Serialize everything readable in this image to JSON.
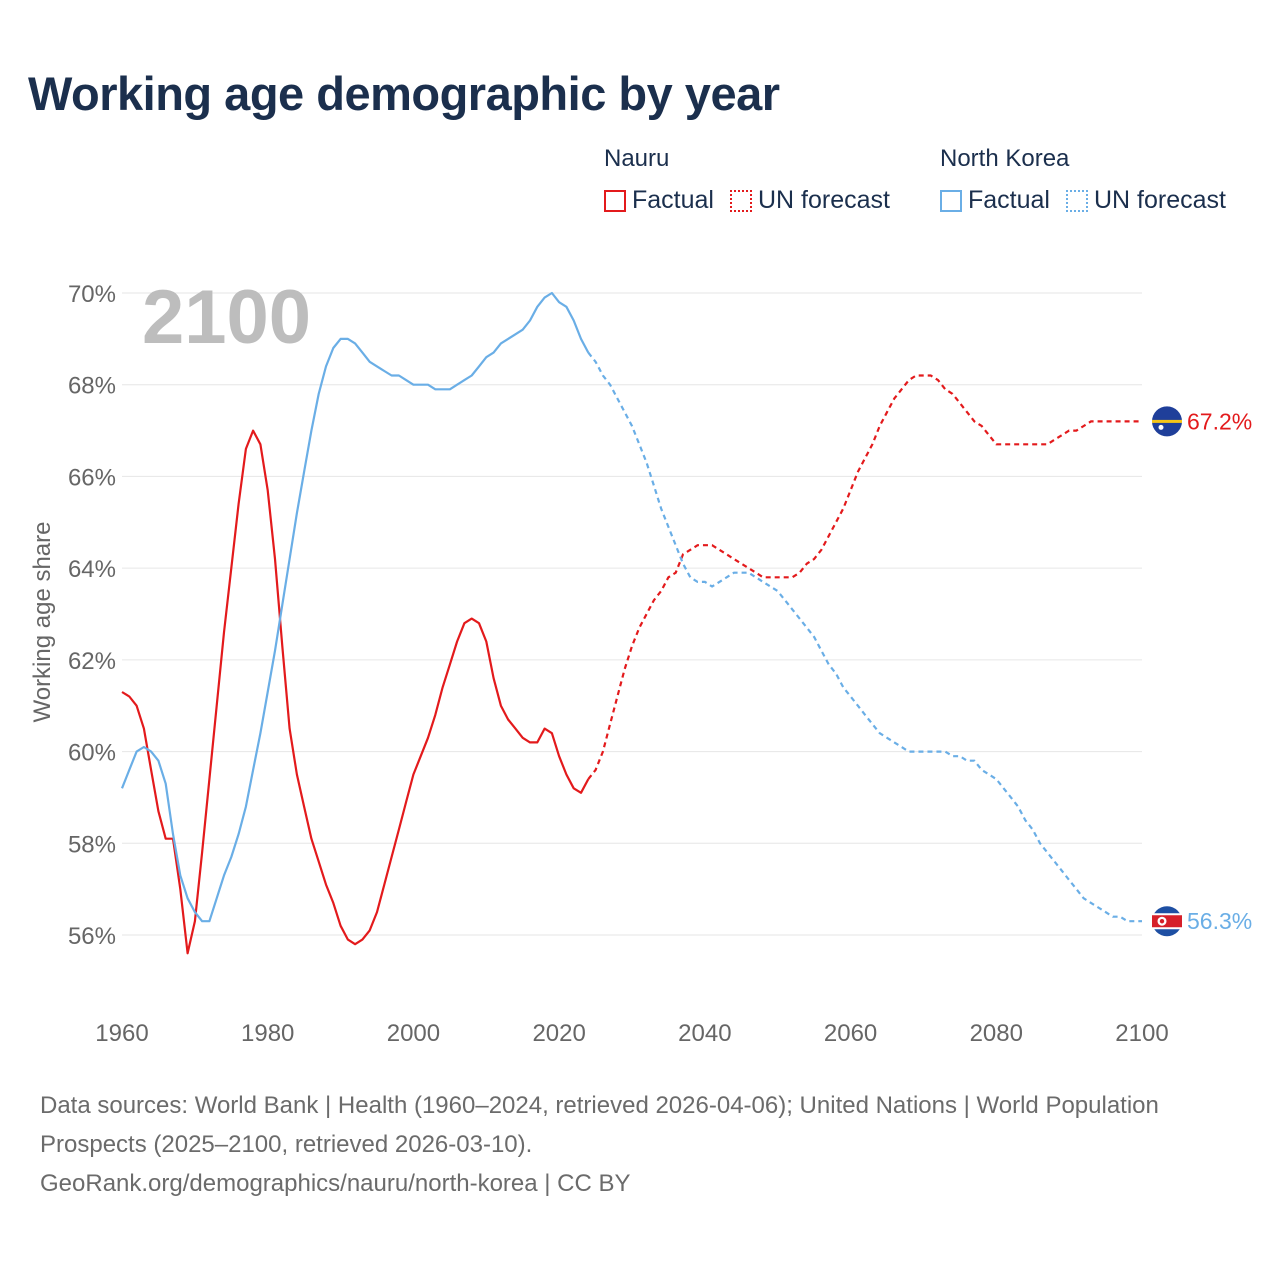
{
  "title": "Working age demographic by year",
  "legend": {
    "groups": [
      {
        "name": "Nauru",
        "color": "#e31a1c",
        "factual_label": "Factual",
        "forecast_label": "UN forecast"
      },
      {
        "name": "North Korea",
        "color": "#6aaee6",
        "factual_label": "Factual",
        "forecast_label": "UN forecast"
      }
    ]
  },
  "chart_data": {
    "type": "line",
    "title": "Working age demographic by year",
    "year_watermark": "2100",
    "ylabel": "Working age share",
    "xlabel": "",
    "xlim": [
      1960,
      2100
    ],
    "ylim": [
      56,
      70
    ],
    "x_ticks": [
      1960,
      1980,
      2000,
      2020,
      2040,
      2060,
      2080,
      2100
    ],
    "y_ticks": [
      56,
      58,
      60,
      62,
      64,
      66,
      68,
      70
    ],
    "y_tick_labels": [
      "56%",
      "58%",
      "60%",
      "62%",
      "64%",
      "66%",
      "68%",
      "70%"
    ],
    "grid": true,
    "series": [
      {
        "name": "Nauru",
        "color": "#e31a1c",
        "end_label": "67.2%",
        "factual": [
          [
            1960,
            61.3
          ],
          [
            1961,
            61.2
          ],
          [
            1962,
            61.0
          ],
          [
            1963,
            60.5
          ],
          [
            1964,
            59.6
          ],
          [
            1965,
            58.7
          ],
          [
            1966,
            58.1
          ],
          [
            1967,
            58.1
          ],
          [
            1968,
            57.0
          ],
          [
            1969,
            55.6
          ],
          [
            1970,
            56.3
          ],
          [
            1971,
            57.8
          ],
          [
            1972,
            59.4
          ],
          [
            1973,
            61.0
          ],
          [
            1974,
            62.6
          ],
          [
            1975,
            64.0
          ],
          [
            1976,
            65.4
          ],
          [
            1977,
            66.6
          ],
          [
            1978,
            67.0
          ],
          [
            1979,
            66.7
          ],
          [
            1980,
            65.7
          ],
          [
            1981,
            64.2
          ],
          [
            1982,
            62.3
          ],
          [
            1983,
            60.5
          ],
          [
            1984,
            59.5
          ],
          [
            1985,
            58.8
          ],
          [
            1986,
            58.1
          ],
          [
            1987,
            57.6
          ],
          [
            1988,
            57.1
          ],
          [
            1989,
            56.7
          ],
          [
            1990,
            56.2
          ],
          [
            1991,
            55.9
          ],
          [
            1992,
            55.8
          ],
          [
            1993,
            55.9
          ],
          [
            1994,
            56.1
          ],
          [
            1995,
            56.5
          ],
          [
            1996,
            57.1
          ],
          [
            1997,
            57.7
          ],
          [
            1998,
            58.3
          ],
          [
            1999,
            58.9
          ],
          [
            2000,
            59.5
          ],
          [
            2001,
            59.9
          ],
          [
            2002,
            60.3
          ],
          [
            2003,
            60.8
          ],
          [
            2004,
            61.4
          ],
          [
            2005,
            61.9
          ],
          [
            2006,
            62.4
          ],
          [
            2007,
            62.8
          ],
          [
            2008,
            62.9
          ],
          [
            2009,
            62.8
          ],
          [
            2010,
            62.4
          ],
          [
            2011,
            61.6
          ],
          [
            2012,
            61.0
          ],
          [
            2013,
            60.7
          ],
          [
            2014,
            60.5
          ],
          [
            2015,
            60.3
          ],
          [
            2016,
            60.2
          ],
          [
            2017,
            60.2
          ],
          [
            2018,
            60.5
          ],
          [
            2019,
            60.4
          ],
          [
            2020,
            59.9
          ],
          [
            2021,
            59.5
          ],
          [
            2022,
            59.2
          ],
          [
            2023,
            59.1
          ],
          [
            2024,
            59.4
          ]
        ],
        "forecast": [
          [
            2024,
            59.4
          ],
          [
            2025,
            59.6
          ],
          [
            2026,
            60.0
          ],
          [
            2027,
            60.6
          ],
          [
            2028,
            61.2
          ],
          [
            2029,
            61.8
          ],
          [
            2030,
            62.3
          ],
          [
            2031,
            62.7
          ],
          [
            2032,
            63.0
          ],
          [
            2033,
            63.3
          ],
          [
            2034,
            63.5
          ],
          [
            2035,
            63.8
          ],
          [
            2036,
            63.9
          ],
          [
            2037,
            64.3
          ],
          [
            2038,
            64.4
          ],
          [
            2039,
            64.5
          ],
          [
            2040,
            64.5
          ],
          [
            2041,
            64.5
          ],
          [
            2042,
            64.4
          ],
          [
            2043,
            64.3
          ],
          [
            2044,
            64.2
          ],
          [
            2045,
            64.1
          ],
          [
            2046,
            64.0
          ],
          [
            2047,
            63.9
          ],
          [
            2048,
            63.8
          ],
          [
            2049,
            63.8
          ],
          [
            2050,
            63.8
          ],
          [
            2051,
            63.8
          ],
          [
            2052,
            63.8
          ],
          [
            2053,
            63.9
          ],
          [
            2054,
            64.1
          ],
          [
            2055,
            64.2
          ],
          [
            2056,
            64.4
          ],
          [
            2057,
            64.7
          ],
          [
            2058,
            65.0
          ],
          [
            2059,
            65.3
          ],
          [
            2060,
            65.7
          ],
          [
            2061,
            66.1
          ],
          [
            2062,
            66.4
          ],
          [
            2063,
            66.7
          ],
          [
            2064,
            67.1
          ],
          [
            2065,
            67.4
          ],
          [
            2066,
            67.7
          ],
          [
            2067,
            67.9
          ],
          [
            2068,
            68.1
          ],
          [
            2069,
            68.2
          ],
          [
            2070,
            68.2
          ],
          [
            2071,
            68.2
          ],
          [
            2072,
            68.1
          ],
          [
            2073,
            67.9
          ],
          [
            2074,
            67.8
          ],
          [
            2075,
            67.6
          ],
          [
            2076,
            67.4
          ],
          [
            2077,
            67.2
          ],
          [
            2078,
            67.1
          ],
          [
            2079,
            66.9
          ],
          [
            2080,
            66.7
          ],
          [
            2081,
            66.7
          ],
          [
            2082,
            66.7
          ],
          [
            2083,
            66.7
          ],
          [
            2084,
            66.7
          ],
          [
            2085,
            66.7
          ],
          [
            2086,
            66.7
          ],
          [
            2087,
            66.7
          ],
          [
            2088,
            66.8
          ],
          [
            2089,
            66.9
          ],
          [
            2090,
            67.0
          ],
          [
            2091,
            67.0
          ],
          [
            2092,
            67.1
          ],
          [
            2093,
            67.2
          ],
          [
            2094,
            67.2
          ],
          [
            2095,
            67.2
          ],
          [
            2096,
            67.2
          ],
          [
            2097,
            67.2
          ],
          [
            2098,
            67.2
          ],
          [
            2099,
            67.2
          ],
          [
            2100,
            67.2
          ]
        ]
      },
      {
        "name": "North Korea",
        "color": "#6aaee6",
        "end_label": "56.3%",
        "factual": [
          [
            1960,
            59.2
          ],
          [
            1961,
            59.6
          ],
          [
            1962,
            60.0
          ],
          [
            1963,
            60.1
          ],
          [
            1964,
            60.0
          ],
          [
            1965,
            59.8
          ],
          [
            1966,
            59.3
          ],
          [
            1967,
            58.2
          ],
          [
            1968,
            57.3
          ],
          [
            1969,
            56.8
          ],
          [
            1970,
            56.5
          ],
          [
            1971,
            56.3
          ],
          [
            1972,
            56.3
          ],
          [
            1973,
            56.8
          ],
          [
            1974,
            57.3
          ],
          [
            1975,
            57.7
          ],
          [
            1976,
            58.2
          ],
          [
            1977,
            58.8
          ],
          [
            1978,
            59.6
          ],
          [
            1979,
            60.4
          ],
          [
            1980,
            61.3
          ],
          [
            1981,
            62.2
          ],
          [
            1982,
            63.2
          ],
          [
            1983,
            64.2
          ],
          [
            1984,
            65.2
          ],
          [
            1985,
            66.1
          ],
          [
            1986,
            67.0
          ],
          [
            1987,
            67.8
          ],
          [
            1988,
            68.4
          ],
          [
            1989,
            68.8
          ],
          [
            1990,
            69.0
          ],
          [
            1991,
            69.0
          ],
          [
            1992,
            68.9
          ],
          [
            1993,
            68.7
          ],
          [
            1994,
            68.5
          ],
          [
            1995,
            68.4
          ],
          [
            1996,
            68.3
          ],
          [
            1997,
            68.2
          ],
          [
            1998,
            68.2
          ],
          [
            1999,
            68.1
          ],
          [
            2000,
            68.0
          ],
          [
            2001,
            68.0
          ],
          [
            2002,
            68.0
          ],
          [
            2003,
            67.9
          ],
          [
            2004,
            67.9
          ],
          [
            2005,
            67.9
          ],
          [
            2006,
            68.0
          ],
          [
            2007,
            68.1
          ],
          [
            2008,
            68.2
          ],
          [
            2009,
            68.4
          ],
          [
            2010,
            68.6
          ],
          [
            2011,
            68.7
          ],
          [
            2012,
            68.9
          ],
          [
            2013,
            69.0
          ],
          [
            2014,
            69.1
          ],
          [
            2015,
            69.2
          ],
          [
            2016,
            69.4
          ],
          [
            2017,
            69.7
          ],
          [
            2018,
            69.9
          ],
          [
            2019,
            70.0
          ],
          [
            2020,
            69.8
          ],
          [
            2021,
            69.7
          ],
          [
            2022,
            69.4
          ],
          [
            2023,
            69.0
          ],
          [
            2024,
            68.7
          ]
        ],
        "forecast": [
          [
            2024,
            68.7
          ],
          [
            2025,
            68.5
          ],
          [
            2026,
            68.2
          ],
          [
            2027,
            68.0
          ],
          [
            2028,
            67.7
          ],
          [
            2029,
            67.4
          ],
          [
            2030,
            67.1
          ],
          [
            2031,
            66.7
          ],
          [
            2032,
            66.3
          ],
          [
            2033,
            65.8
          ],
          [
            2034,
            65.3
          ],
          [
            2035,
            64.9
          ],
          [
            2036,
            64.5
          ],
          [
            2037,
            64.1
          ],
          [
            2038,
            63.8
          ],
          [
            2039,
            63.7
          ],
          [
            2040,
            63.7
          ],
          [
            2041,
            63.6
          ],
          [
            2042,
            63.7
          ],
          [
            2043,
            63.8
          ],
          [
            2044,
            63.9
          ],
          [
            2045,
            63.9
          ],
          [
            2046,
            63.9
          ],
          [
            2047,
            63.8
          ],
          [
            2048,
            63.7
          ],
          [
            2049,
            63.6
          ],
          [
            2050,
            63.5
          ],
          [
            2051,
            63.3
          ],
          [
            2052,
            63.1
          ],
          [
            2053,
            62.9
          ],
          [
            2054,
            62.7
          ],
          [
            2055,
            62.5
          ],
          [
            2056,
            62.2
          ],
          [
            2057,
            61.9
          ],
          [
            2058,
            61.7
          ],
          [
            2059,
            61.4
          ],
          [
            2060,
            61.2
          ],
          [
            2061,
            61.0
          ],
          [
            2062,
            60.8
          ],
          [
            2063,
            60.6
          ],
          [
            2064,
            60.4
          ],
          [
            2065,
            60.3
          ],
          [
            2066,
            60.2
          ],
          [
            2067,
            60.1
          ],
          [
            2068,
            60.0
          ],
          [
            2069,
            60.0
          ],
          [
            2070,
            60.0
          ],
          [
            2071,
            60.0
          ],
          [
            2072,
            60.0
          ],
          [
            2073,
            60.0
          ],
          [
            2074,
            59.9
          ],
          [
            2075,
            59.9
          ],
          [
            2076,
            59.8
          ],
          [
            2077,
            59.8
          ],
          [
            2078,
            59.6
          ],
          [
            2079,
            59.5
          ],
          [
            2080,
            59.4
          ],
          [
            2081,
            59.2
          ],
          [
            2082,
            59.0
          ],
          [
            2083,
            58.8
          ],
          [
            2084,
            58.5
          ],
          [
            2085,
            58.3
          ],
          [
            2086,
            58.0
          ],
          [
            2087,
            57.8
          ],
          [
            2088,
            57.6
          ],
          [
            2089,
            57.4
          ],
          [
            2090,
            57.2
          ],
          [
            2091,
            57.0
          ],
          [
            2092,
            56.8
          ],
          [
            2093,
            56.7
          ],
          [
            2094,
            56.6
          ],
          [
            2095,
            56.5
          ],
          [
            2096,
            56.4
          ],
          [
            2097,
            56.4
          ],
          [
            2098,
            56.3
          ],
          [
            2099,
            56.3
          ],
          [
            2100,
            56.3
          ]
        ]
      }
    ]
  },
  "source": {
    "line1": "Data sources: World Bank | Health (1960–2024, retrieved 2026-04-06); United Nations | World Population Prospects (2025–2100, retrieved 2026-03-10).",
    "line2": "GeoRank.org/demographics/nauru/north-korea | CC BY"
  }
}
